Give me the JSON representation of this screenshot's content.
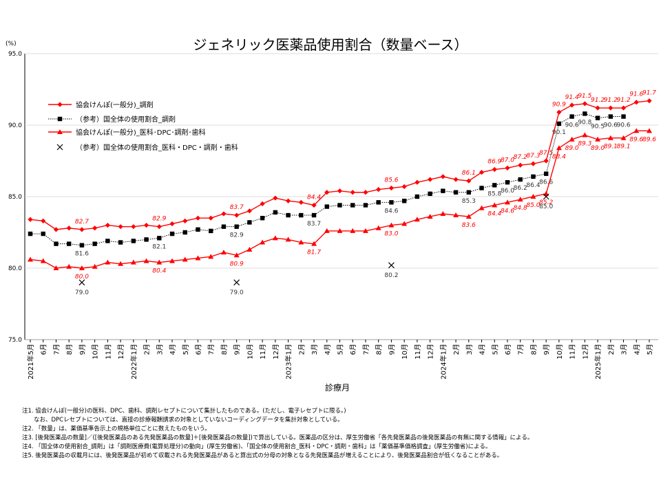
{
  "chart_data": {
    "type": "line",
    "title": "ジェネリック医薬品使用割合（数量ベース）",
    "y_unit": "(%)",
    "x_label": "診療月",
    "categories": [
      "2021年5月",
      "6月",
      "7月",
      "8月",
      "9月",
      "10月",
      "11月",
      "12月",
      "2022年1月",
      "2月",
      "3月",
      "4月",
      "5月",
      "6月",
      "7月",
      "8月",
      "9月",
      "10月",
      "11月",
      "12月",
      "2023年1月",
      "2月",
      "3月",
      "4月",
      "5月",
      "6月",
      "7月",
      "8月",
      "9月",
      "10月",
      "11月",
      "12月",
      "2024年1月",
      "2月",
      "3月",
      "4月",
      "5月",
      "6月",
      "7月",
      "8月",
      "9月",
      "10月",
      "11月",
      "12月",
      "2025年1月",
      "2月",
      "3月",
      "4月",
      "5月"
    ],
    "ylim": [
      75,
      95
    ],
    "yticks": [
      {
        "value": 75,
        "label": "75.0"
      },
      {
        "value": 80,
        "label": "80.0"
      },
      {
        "value": 85,
        "label": "85.0"
      },
      {
        "value": 90,
        "label": "90.0"
      },
      {
        "value": 95,
        "label": "95.0"
      }
    ],
    "series": [
      {
        "name": "協会けんぽ(一般分)_調剤",
        "color": "#ff0000",
        "marker": "diamond",
        "line": "solid",
        "values": [
          83.4,
          83.3,
          82.7,
          82.8,
          82.7,
          82.8,
          83.0,
          82.9,
          82.9,
          83.0,
          82.9,
          83.1,
          83.3,
          83.5,
          83.5,
          83.8,
          83.7,
          84.0,
          84.5,
          84.9,
          84.7,
          84.6,
          84.4,
          85.3,
          85.4,
          85.3,
          85.3,
          85.5,
          85.6,
          85.7,
          86.0,
          86.2,
          86.4,
          86.2,
          86.1,
          86.7,
          86.9,
          87.0,
          87.2,
          87.3,
          87.5,
          90.9,
          91.4,
          91.5,
          91.2,
          91.2,
          91.2,
          91.6,
          91.7
        ],
        "value_labels": [
          null,
          null,
          null,
          null,
          "82.7",
          null,
          null,
          null,
          null,
          null,
          "82.9",
          null,
          null,
          null,
          null,
          null,
          "83.7",
          null,
          null,
          null,
          null,
          null,
          "84.4",
          null,
          null,
          null,
          null,
          null,
          "85.6",
          null,
          null,
          null,
          null,
          null,
          "86.1",
          null,
          "86.9",
          "87.0",
          "87.2",
          "87.3",
          "87.5",
          "90.9",
          "91.4",
          "91.5",
          "91.2",
          "91.2",
          "91.2",
          "91.6",
          "91.7"
        ]
      },
      {
        "name": "（参考）国全体の使用割合_調剤",
        "color": "#000000",
        "marker": "square",
        "line": "dotted",
        "values": [
          82.4,
          82.4,
          81.7,
          81.7,
          81.6,
          81.7,
          81.9,
          81.8,
          81.9,
          82.0,
          82.1,
          82.4,
          82.5,
          82.7,
          82.6,
          82.9,
          82.9,
          83.2,
          83.5,
          83.9,
          83.7,
          83.7,
          83.7,
          84.3,
          84.4,
          84.4,
          84.4,
          84.6,
          84.6,
          84.7,
          85.0,
          85.2,
          85.4,
          85.3,
          85.3,
          85.6,
          85.8,
          86.0,
          86.2,
          86.4,
          86.6,
          90.1,
          90.6,
          90.8,
          90.5,
          90.6,
          90.6,
          null,
          null
        ],
        "value_labels": [
          null,
          null,
          null,
          null,
          "81.6",
          null,
          null,
          null,
          null,
          null,
          "82.1",
          null,
          null,
          null,
          null,
          null,
          "82.9",
          null,
          null,
          null,
          null,
          null,
          "83.7",
          null,
          null,
          null,
          null,
          null,
          "84.6",
          null,
          null,
          null,
          null,
          null,
          "85.3",
          null,
          "85.8",
          "86.0",
          "86.2",
          "86.4",
          "86.6",
          "90.1",
          "90.6",
          "90.8",
          "90.5",
          "90.6",
          "90.6",
          null,
          null
        ]
      },
      {
        "name": "協会けんぽ(一般分)_医科･DPC･調剤･歯科",
        "color": "#ff0000",
        "marker": "triangle",
        "line": "solid",
        "values": [
          80.6,
          80.5,
          80.0,
          80.1,
          80.0,
          80.1,
          80.4,
          80.3,
          80.4,
          80.5,
          80.4,
          80.5,
          80.6,
          80.7,
          80.8,
          81.1,
          80.9,
          81.3,
          81.8,
          82.1,
          82.0,
          81.8,
          81.7,
          82.6,
          82.6,
          82.6,
          82.6,
          82.8,
          83.0,
          83.1,
          83.4,
          83.6,
          83.8,
          83.7,
          83.6,
          84.2,
          84.4,
          84.6,
          84.8,
          85.0,
          85.2,
          88.4,
          89.0,
          89.3,
          89.0,
          89.1,
          89.1,
          89.6,
          89.6
        ],
        "value_labels": [
          null,
          null,
          null,
          null,
          "80.0",
          null,
          null,
          null,
          null,
          null,
          "80.4",
          null,
          null,
          null,
          null,
          null,
          "80.9",
          null,
          null,
          null,
          null,
          null,
          "81.7",
          null,
          null,
          null,
          null,
          null,
          "83.0",
          null,
          null,
          null,
          null,
          null,
          "83.6",
          null,
          "84.4",
          "84.6",
          "84.8",
          "85.0",
          "85.2",
          "88.4",
          "89.0",
          "89.3",
          "89.0",
          "89.1",
          "89.1",
          "89.6",
          "89.6"
        ]
      },
      {
        "name": "（参考）国全体の使用割合_医科・DPC・調剤・歯科",
        "color": "#000000",
        "marker": "cross",
        "line": "none",
        "values": [
          null,
          null,
          null,
          null,
          79.0,
          null,
          null,
          null,
          null,
          null,
          null,
          null,
          null,
          null,
          null,
          null,
          79.0,
          null,
          null,
          null,
          null,
          null,
          null,
          null,
          null,
          null,
          null,
          null,
          80.2,
          null,
          null,
          null,
          null,
          null,
          null,
          null,
          null,
          null,
          null,
          null,
          85.0,
          null,
          null,
          null,
          null,
          null,
          null,
          null,
          null
        ],
        "value_labels": [
          null,
          null,
          null,
          null,
          "79.0",
          null,
          null,
          null,
          null,
          null,
          null,
          null,
          null,
          null,
          null,
          null,
          "79.0",
          null,
          null,
          null,
          null,
          null,
          null,
          null,
          null,
          null,
          null,
          null,
          "80.2",
          null,
          null,
          null,
          null,
          null,
          null,
          null,
          null,
          null,
          null,
          null,
          "85.0",
          null,
          null,
          null,
          null,
          null,
          null,
          null,
          null
        ]
      }
    ],
    "notes": [
      "注1. 協会けんぽ(一般分)の医科、DPC、歯科、調剤レセプトについて集計したものである。(ただし、電子レセプトに限る。)",
      "　　なお、DPCレセプトについては、直接の診療報酬請求の対象としていないコーディングデータを集計対象としている。",
      "注2. 「数量」は、薬価基準告示上の規格単位ごとに数えたものをいう。",
      "注3. [後発医薬品の数量]／([後発医薬品のある先発医薬品の数量]＋[後発医薬品の数量])で算出している。医薬品の区分は、厚生労働省「各先発医薬品の後発医薬品の有無に関する情報」による。",
      "注4. 「国全体の使用割合_調剤」は「調剤医療費(電算処理分)の動向」(厚生労働省)、「国全体の使用割合_医科・DPC・調剤・歯科」は「薬価基準価格調査」(厚生労働省)による。",
      "注5. 後発医薬品の収載月には、後発医薬品が初めて収載される先発医薬品があると算出式の分母の対象となる先発医薬品が増えることにより、後発医薬品割合が低くなることがある。"
    ]
  }
}
